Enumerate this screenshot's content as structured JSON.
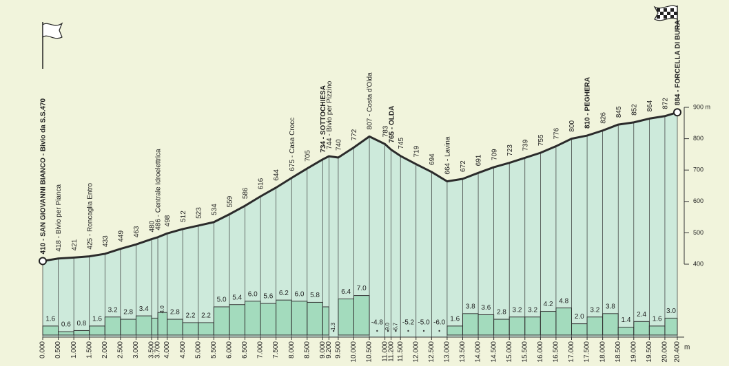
{
  "chart_data": {
    "type": "elevation-profile",
    "x": [
      0,
      0.5,
      1,
      1.5,
      2,
      2.5,
      3,
      3.5,
      3.7,
      4,
      4.5,
      5,
      5.5,
      6,
      6.5,
      7,
      7.5,
      8,
      8.5,
      9,
      9.2,
      9.5,
      10,
      10.5,
      11,
      11.2,
      11.5,
      12,
      12.5,
      13,
      13.5,
      14,
      14.5,
      15,
      15.5,
      16,
      16.5,
      17,
      17.5,
      18,
      18.5,
      19,
      19.5,
      20,
      20.4
    ],
    "x_labels": [
      "0.000",
      "0.500",
      "1.000",
      "1.500",
      "2.000",
      "2.500",
      "3.000",
      "3.500",
      "3.700",
      "4.000",
      "4.500",
      "5.000",
      "5.500",
      "6.000",
      "6.500",
      "7.000",
      "7.500",
      "8.000",
      "8.500",
      "9.000",
      "9.200",
      "9.500",
      "10.000",
      "10.500",
      "11.000",
      "11.200",
      "11.500",
      "12.000",
      "12.500",
      "13.000",
      "13.500",
      "14.000",
      "14.500",
      "15.000",
      "15.500",
      "16.000",
      "16.500",
      "17.000",
      "17.500",
      "18.000",
      "18.500",
      "19.000",
      "19.500",
      "20.000",
      "20.400"
    ],
    "x_unit": "m",
    "values": [
      410,
      418,
      421,
      425,
      433,
      449,
      463,
      480,
      486,
      498,
      512,
      523,
      534,
      559,
      586,
      616,
      644,
      675,
      705,
      734,
      744,
      740,
      772,
      807,
      783,
      765,
      745,
      719,
      694,
      664,
      672,
      691,
      709,
      723,
      739,
      755,
      776,
      800,
      810,
      826,
      845,
      852,
      864,
      872,
      884
    ],
    "value_labels": [
      "410 - SAN GIOVANNI BIANCO - Bivio da S.S.470",
      "418 - Bivio per Pianca",
      null,
      "425 - Roncaglia Entro",
      null,
      null,
      null,
      null,
      "486 - Centrale Idroelettrica",
      null,
      null,
      null,
      null,
      null,
      null,
      null,
      null,
      "675 - Casa Crocc",
      null,
      "734 - SOTTOCHIESA",
      "744 - Bivio per Pizzino",
      null,
      null,
      "807 - Costa d'Olda",
      null,
      "765 - OLDA",
      null,
      null,
      null,
      "664 - Lavina",
      null,
      null,
      null,
      null,
      null,
      null,
      null,
      null,
      "810 - PEGHERA",
      null,
      null,
      null,
      null,
      null,
      "884 - FORCELLA DI BURA"
    ],
    "gradients": [
      1.6,
      0.6,
      0.8,
      1.6,
      3.2,
      2.8,
      3.4,
      3.0,
      4.0,
      2.8,
      2.2,
      2.2,
      5.0,
      5.4,
      6.0,
      5.6,
      6.2,
      6.0,
      5.8,
      5.0,
      -1.3,
      6.4,
      7.0,
      -4.8,
      -9.0,
      -6.7,
      -5.2,
      -5.0,
      -6.0,
      1.6,
      3.8,
      3.6,
      2.8,
      3.2,
      3.2,
      4.2,
      4.8,
      2.0,
      3.2,
      3.8,
      1.4,
      2.4,
      1.6,
      3.0
    ],
    "gradient_labels": [
      "1.6",
      "0.6",
      "0.8",
      "1.6",
      "3.2",
      "2.8",
      "3.4",
      null,
      "4.0",
      "2.8",
      "2.2",
      "2.2",
      "5.0",
      "5.4",
      "6.0",
      "5.6",
      "6.2",
      "6.0",
      "5.8",
      null,
      "-1.3",
      "6.4",
      "7.0",
      "-4.8",
      "-9.0",
      "-6.7",
      "-5.2",
      "-5.0",
      "-6.0",
      "1.6",
      "3.8",
      "3.6",
      "2.8",
      "3.2",
      "3.2",
      "4.2",
      "4.8",
      "2.0",
      "3.2",
      "3.8",
      "1.4",
      "2.4",
      "1.6",
      "3.0"
    ],
    "xlim": [
      0,
      20.4
    ],
    "ylim": [
      400,
      900
    ],
    "yticks": [
      400,
      500,
      600,
      700,
      800,
      {
        "value": 900,
        "label": "900 m"
      }
    ],
    "line_color": "#2b2b2b",
    "area_color": "#cdeadb",
    "bar_color": "#a3dbbd"
  }
}
